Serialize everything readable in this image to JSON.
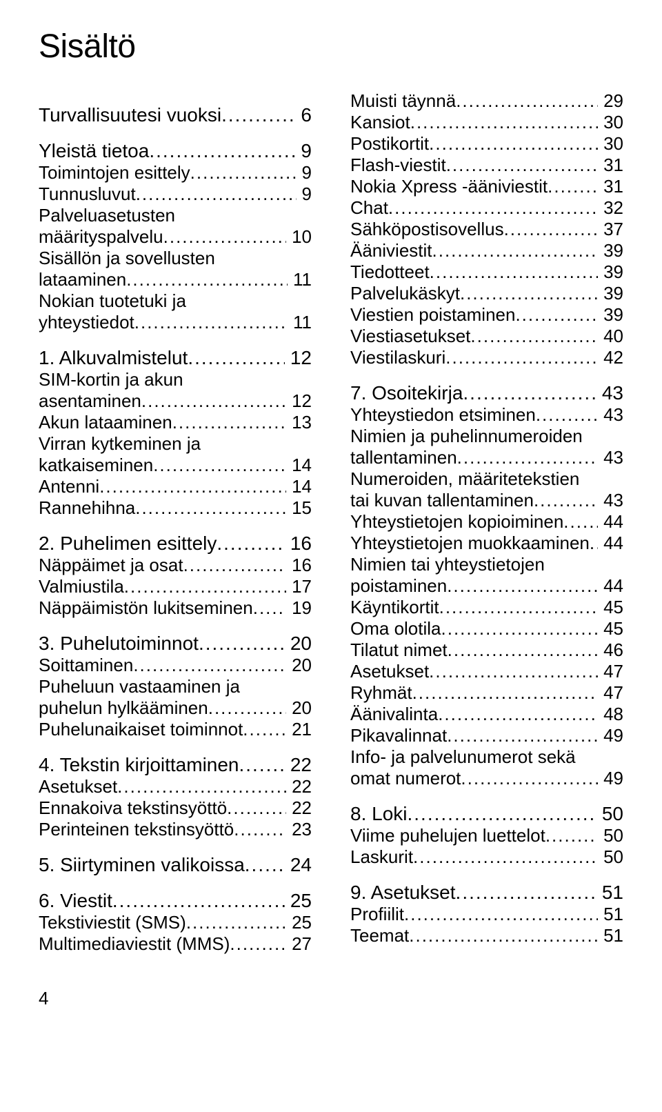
{
  "title": "Sisältö",
  "page_number": "4",
  "toc": [
    {
      "level": "section",
      "label": "Turvallisuutesi vuoksi",
      "page": "6",
      "gap_before": false
    },
    {
      "level": "section",
      "label": "Yleistä tietoa",
      "page": "9",
      "gap_before": false
    },
    {
      "level": "sub",
      "label": "Toimintojen esittely",
      "page": "9"
    },
    {
      "level": "sub",
      "label": "Tunnusluvut",
      "page": "9"
    },
    {
      "level": "sub",
      "label": "Palveluasetusten määrityspalvelu",
      "page": "10"
    },
    {
      "level": "sub",
      "label": "Sisällön ja sovellusten lataaminen",
      "page": "11"
    },
    {
      "level": "sub",
      "label": "Nokian tuotetuki ja yhteystiedot",
      "page": "11"
    },
    {
      "level": "section",
      "label": "1. Alkuvalmistelut",
      "page": "12",
      "gap_before": true
    },
    {
      "level": "sub",
      "label": "SIM-kortin ja akun asentaminen",
      "page": "12"
    },
    {
      "level": "sub",
      "label": "Akun lataaminen",
      "page": "13"
    },
    {
      "level": "sub",
      "label": "Virran kytkeminen ja katkaiseminen",
      "page": "14"
    },
    {
      "level": "sub",
      "label": "Antenni",
      "page": "14"
    },
    {
      "level": "sub",
      "label": "Rannehihna",
      "page": "15"
    },
    {
      "level": "section",
      "label": "2. Puhelimen esittely",
      "page": "16",
      "gap_before": true
    },
    {
      "level": "sub",
      "label": "Näppäimet ja osat",
      "page": "16"
    },
    {
      "level": "sub",
      "label": "Valmiustila",
      "page": "17"
    },
    {
      "level": "sub",
      "label": "Näppäimistön lukitseminen",
      "page": "19"
    },
    {
      "level": "section",
      "label": "3. Puhelutoiminnot",
      "page": "20",
      "gap_before": true
    },
    {
      "level": "sub",
      "label": "Soittaminen",
      "page": "20"
    },
    {
      "level": "sub",
      "label": "Puheluun vastaaminen ja puhelun hylkääminen",
      "page": "20"
    },
    {
      "level": "sub",
      "label": "Puhelunaikaiset toiminnot",
      "page": "21"
    },
    {
      "level": "section",
      "label": "4. Tekstin kirjoittaminen",
      "page": "22",
      "gap_before": true
    },
    {
      "level": "sub",
      "label": "Asetukset",
      "page": "22"
    },
    {
      "level": "sub",
      "label": "Ennakoiva tekstinsyöttö",
      "page": "22"
    },
    {
      "level": "sub",
      "label": "Perinteinen tekstinsyöttö",
      "page": "23"
    },
    {
      "level": "section",
      "label": "5. Siirtyminen valikoissa",
      "page": "24",
      "gap_before": true
    },
    {
      "level": "section",
      "label": "6. Viestit",
      "page": "25",
      "gap_before": true
    },
    {
      "level": "sub",
      "label": "Tekstiviestit (SMS)",
      "page": "25"
    },
    {
      "level": "sub",
      "label": "Multimediaviestit (MMS)",
      "page": "27"
    },
    {
      "level": "sub",
      "label": "Muisti täynnä",
      "page": "29"
    },
    {
      "level": "sub",
      "label": "Kansiot",
      "page": "30"
    },
    {
      "level": "sub",
      "label": "Postikortit",
      "page": "30"
    },
    {
      "level": "sub",
      "label": "Flash-viestit",
      "page": "31"
    },
    {
      "level": "sub",
      "label": "Nokia Xpress -ääniviestit",
      "page": "31"
    },
    {
      "level": "sub",
      "label": "Chat",
      "page": "32"
    },
    {
      "level": "sub",
      "label": "Sähköpostisovellus",
      "page": "37"
    },
    {
      "level": "sub",
      "label": "Ääniviestit",
      "page": "39"
    },
    {
      "level": "sub",
      "label": "Tiedotteet",
      "page": "39"
    },
    {
      "level": "sub",
      "label": "Palvelukäskyt",
      "page": "39"
    },
    {
      "level": "sub",
      "label": "Viestien poistaminen",
      "page": "39"
    },
    {
      "level": "sub",
      "label": "Viestiasetukset",
      "page": "40"
    },
    {
      "level": "sub",
      "label": "Viestilaskuri",
      "page": "42"
    },
    {
      "level": "section",
      "label": "7. Osoitekirja",
      "page": "43",
      "gap_before": true
    },
    {
      "level": "sub",
      "label": "Yhteystiedon etsiminen",
      "page": "43"
    },
    {
      "level": "sub",
      "label": "Nimien ja puhelinnumeroiden tallentaminen",
      "page": "43"
    },
    {
      "level": "sub",
      "label": "Numeroiden, määritetekstien tai kuvan tallentaminen",
      "page": "43"
    },
    {
      "level": "sub",
      "label": "Yhteystietojen kopioiminen",
      "page": "44"
    },
    {
      "level": "sub",
      "label": "Yhteystietojen muokkaaminen",
      "page": "44"
    },
    {
      "level": "sub",
      "label": "Nimien tai yhteystietojen poistaminen",
      "page": "44"
    },
    {
      "level": "sub",
      "label": "Käyntikortit",
      "page": "45"
    },
    {
      "level": "sub",
      "label": "Oma olotila",
      "page": "45"
    },
    {
      "level": "sub",
      "label": "Tilatut nimet",
      "page": "46"
    },
    {
      "level": "sub",
      "label": "Asetukset",
      "page": "47"
    },
    {
      "level": "sub",
      "label": "Ryhmät",
      "page": "47"
    },
    {
      "level": "sub",
      "label": "Äänivalinta",
      "page": "48"
    },
    {
      "level": "sub",
      "label": "Pikavalinnat",
      "page": "49"
    },
    {
      "level": "sub",
      "label": "Info- ja palvelunumerot sekä omat numerot",
      "page": "49"
    },
    {
      "level": "section",
      "label": "8. Loki",
      "page": "50",
      "gap_before": true
    },
    {
      "level": "sub",
      "label": "Viime puhelujen luettelot",
      "page": "50"
    },
    {
      "level": "sub",
      "label": "Laskurit",
      "page": "50"
    },
    {
      "level": "section",
      "label": "9. Asetukset",
      "page": "51",
      "gap_before": true
    },
    {
      "level": "sub",
      "label": "Profiilit",
      "page": "51"
    },
    {
      "level": "sub",
      "label": "Teemat",
      "page": "51"
    }
  ]
}
